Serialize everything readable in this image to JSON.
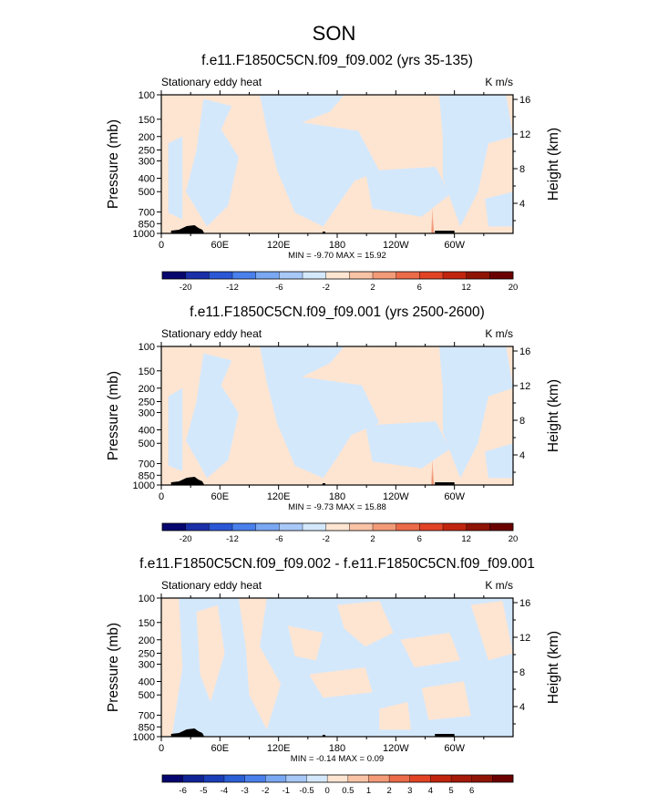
{
  "figure_title": "SON",
  "colors": {
    "positive_fill": "#fde5d2",
    "negative_fill": "#d4e8fc",
    "topography": "#000000",
    "spike_colors": [
      "#f6b396",
      "#ee8a6a"
    ]
  },
  "colorbars": [
    {
      "colors": [
        "#06066e",
        "#1a2fa8",
        "#2b57d6",
        "#4a80ec",
        "#7aa8f3",
        "#a8c8f8",
        "#d4e8fc",
        "#fde5d2",
        "#f9c3a6",
        "#f39b78",
        "#ec6b48",
        "#e24325",
        "#c2250e",
        "#8f1405",
        "#6b0000"
      ],
      "labels": [
        "-20",
        "-12",
        "-6",
        "-2",
        "2",
        "6",
        "12",
        "20"
      ]
    },
    {
      "colors": [
        "#06066e",
        "#1a2fa8",
        "#2b57d6",
        "#4a80ec",
        "#7aa8f3",
        "#a8c8f8",
        "#d4e8fc",
        "#fde5d2",
        "#f9c3a6",
        "#f39b78",
        "#ec6b48",
        "#e24325",
        "#c2250e",
        "#8f1405",
        "#6b0000"
      ],
      "labels": [
        "-20",
        "-12",
        "-6",
        "-2",
        "2",
        "6",
        "12",
        "20"
      ]
    },
    {
      "colors": [
        "#06066e",
        "#102495",
        "#1a3eb8",
        "#2b5fd6",
        "#4a80ec",
        "#7aa8f3",
        "#a8c8f8",
        "#d4e8fc",
        "#fde5d2",
        "#f9c3a6",
        "#f39b78",
        "#ec6b48",
        "#e24325",
        "#c2250e",
        "#a51a08",
        "#8f1405",
        "#6b0000"
      ],
      "labels": [
        "-6",
        "-5",
        "-4",
        "-3",
        "-2",
        "-1",
        "-0.5",
        "0",
        "0.5",
        "1",
        "2",
        "3",
        "4",
        "5",
        "6"
      ]
    }
  ],
  "chart_data": [
    {
      "type": "heatmap",
      "title": "f.e11.F1850C5CN.f09_f09.002 (yrs 35-135)",
      "left_string": "Stationary eddy heat",
      "right_string": "K m/s",
      "ylabel": "Pressure (mb)",
      "y2label": "Height (km)",
      "x_ticks": [
        "0",
        "60E",
        "120E",
        "180",
        "120W",
        "60W"
      ],
      "y_ticks": [
        "100",
        "150",
        "200",
        "250",
        "300",
        "400",
        "500",
        "700",
        "850",
        "1000"
      ],
      "y2_ticks": [
        "16",
        "12",
        "8",
        "4"
      ],
      "stats": "MIN = -9.70  MAX = 15.92",
      "min": -9.7,
      "max": 15.92
    },
    {
      "type": "heatmap",
      "title": "f.e11.F1850C5CN.f09_f09.001 (yrs 2500-2600)",
      "left_string": "Stationary eddy heat",
      "right_string": "K m/s",
      "ylabel": "Pressure (mb)",
      "y2label": "Height (km)",
      "x_ticks": [
        "0",
        "60E",
        "120E",
        "180",
        "120W",
        "60W"
      ],
      "y_ticks": [
        "100",
        "150",
        "200",
        "250",
        "300",
        "400",
        "500",
        "700",
        "850",
        "1000"
      ],
      "y2_ticks": [
        "16",
        "12",
        "8",
        "4"
      ],
      "stats": "MIN = -9.73  MAX = 15.88",
      "min": -9.73,
      "max": 15.88
    },
    {
      "type": "heatmap",
      "title": "f.e11.F1850C5CN.f09_f09.002 - f.e11.F1850C5CN.f09_f09.001",
      "left_string": "Stationary eddy heat",
      "right_string": "K m/s",
      "ylabel": "Pressure (mb)",
      "y2label": "Height (km)",
      "x_ticks": [
        "0",
        "60E",
        "120E",
        "180",
        "120W",
        "60W"
      ],
      "y_ticks": [
        "100",
        "150",
        "200",
        "250",
        "300",
        "400",
        "500",
        "700",
        "850",
        "1000"
      ],
      "y2_ticks": [
        "16",
        "12",
        "8",
        "4"
      ],
      "stats": "MIN = -0.14  MAX = 0.09",
      "min": -0.14,
      "max": 0.09
    }
  ]
}
